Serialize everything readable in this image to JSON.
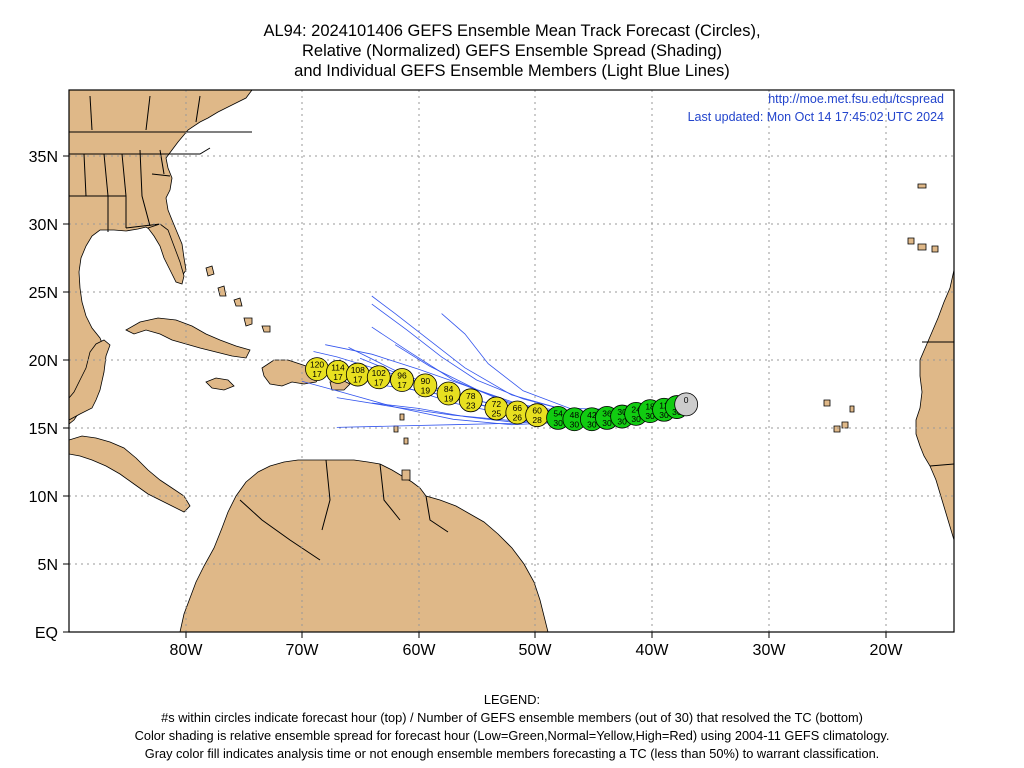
{
  "title": {
    "line1": "AL94: 2024101406 GEFS Ensemble Mean Track Forecast (Circles),",
    "line2": "Relative (Normalized) GEFS Ensemble Spread (Shading)",
    "line3": "and Individual GEFS Ensemble Members (Light Blue Lines)"
  },
  "credit": {
    "url": "http://moe.met.fsu.edu/tcspread",
    "updated": "Last updated: Mon Oct 14 17:45:02 UTC 2024"
  },
  "axes": {
    "lon_ticks": [
      "80W",
      "70W",
      "60W",
      "50W",
      "40W",
      "30W",
      "20W"
    ],
    "lat_ticks": [
      "EQ",
      "5N",
      "10N",
      "15N",
      "20N",
      "25N",
      "30N",
      "35N"
    ],
    "lon_range": [
      -90,
      -14
    ],
    "lat_range": [
      0,
      40
    ]
  },
  "colors": {
    "land": "#dfb888",
    "green": "#11cc11",
    "yellow": "#e8e020",
    "gray": "#cccccc",
    "member_lines": "#3355ee",
    "credit_text": "#2244cc"
  },
  "chart_data": {
    "type": "scatter",
    "track": [
      {
        "hour": "0",
        "members": "",
        "lon": -37.0,
        "lat": 16.8,
        "fill": "gray"
      },
      {
        "hour": "6",
        "members": "30",
        "lon": -37.8,
        "lat": 16.6,
        "fill": "green"
      },
      {
        "hour": "12",
        "members": "30",
        "lon": -38.9,
        "lat": 16.4,
        "fill": "green"
      },
      {
        "hour": "18",
        "members": "30",
        "lon": -40.1,
        "lat": 16.3,
        "fill": "green"
      },
      {
        "hour": "24",
        "members": "30",
        "lon": -41.3,
        "lat": 16.1,
        "fill": "green"
      },
      {
        "hour": "30",
        "members": "30",
        "lon": -42.5,
        "lat": 15.9,
        "fill": "green"
      },
      {
        "hour": "36",
        "members": "30",
        "lon": -43.8,
        "lat": 15.8,
        "fill": "green"
      },
      {
        "hour": "42",
        "members": "30",
        "lon": -45.1,
        "lat": 15.7,
        "fill": "green"
      },
      {
        "hour": "48",
        "members": "30",
        "lon": -46.6,
        "lat": 15.7,
        "fill": "green"
      },
      {
        "hour": "54",
        "members": "30",
        "lon": -48.0,
        "lat": 15.8,
        "fill": "green"
      },
      {
        "hour": "60",
        "members": "28",
        "lon": -49.8,
        "lat": 16.0,
        "fill": "yellow"
      },
      {
        "hour": "66",
        "members": "26",
        "lon": -51.5,
        "lat": 16.2,
        "fill": "yellow"
      },
      {
        "hour": "72",
        "members": "25",
        "lon": -53.3,
        "lat": 16.5,
        "fill": "yellow"
      },
      {
        "hour": "78",
        "members": "23",
        "lon": -55.5,
        "lat": 17.1,
        "fill": "yellow"
      },
      {
        "hour": "84",
        "members": "19",
        "lon": -57.4,
        "lat": 17.6,
        "fill": "yellow"
      },
      {
        "hour": "90",
        "members": "19",
        "lon": -59.4,
        "lat": 18.2,
        "fill": "yellow"
      },
      {
        "hour": "96",
        "members": "17",
        "lon": -61.4,
        "lat": 18.6,
        "fill": "yellow"
      },
      {
        "hour": "102",
        "members": "17",
        "lon": -63.4,
        "lat": 18.8,
        "fill": "yellow"
      },
      {
        "hour": "108",
        "members": "17",
        "lon": -65.2,
        "lat": 19.0,
        "fill": "yellow"
      },
      {
        "hour": "114",
        "members": "17",
        "lon": -66.9,
        "lat": 19.2,
        "fill": "yellow"
      },
      {
        "hour": "120",
        "members": "17",
        "lon": -68.7,
        "lat": 19.4,
        "fill": "yellow"
      }
    ],
    "members": [
      [
        [
          -37.5,
          16.6
        ],
        [
          -42,
          16.2
        ],
        [
          -47,
          16.0
        ],
        [
          -52,
          16.5
        ],
        [
          -57,
          17.5
        ],
        [
          -62,
          19.3
        ],
        [
          -66,
          21.0
        ]
      ],
      [
        [
          -37.5,
          16.6
        ],
        [
          -42,
          16.3
        ],
        [
          -47,
          16.3
        ],
        [
          -52,
          17.5
        ],
        [
          -56,
          19.5
        ],
        [
          -59,
          21.5
        ],
        [
          -62,
          23.5
        ],
        [
          -64,
          24.8
        ]
      ],
      [
        [
          -37.5,
          16.6
        ],
        [
          -42,
          16.1
        ],
        [
          -47,
          15.8
        ],
        [
          -52,
          16.0
        ],
        [
          -57,
          16.9
        ],
        [
          -62,
          18.3
        ],
        [
          -67,
          19.8
        ]
      ],
      [
        [
          -37.5,
          16.6
        ],
        [
          -42,
          16.0
        ],
        [
          -47,
          15.6
        ],
        [
          -52,
          15.6
        ],
        [
          -57,
          16.0
        ],
        [
          -62,
          16.6
        ],
        [
          -67,
          17.3
        ]
      ],
      [
        [
          -37.5,
          16.6
        ],
        [
          -42,
          16.2
        ],
        [
          -47,
          15.9
        ],
        [
          -52,
          16.2
        ],
        [
          -57,
          17.3
        ],
        [
          -61,
          18.8
        ],
        [
          -65,
          20.2
        ]
      ],
      [
        [
          -37.5,
          16.6
        ],
        [
          -42,
          16.4
        ],
        [
          -47,
          16.5
        ],
        [
          -51,
          17.8
        ],
        [
          -54,
          19.8
        ],
        [
          -56,
          22.0
        ],
        [
          -58,
          23.5
        ]
      ],
      [
        [
          -37.5,
          16.6
        ],
        [
          -42,
          16.1
        ],
        [
          -47,
          15.7
        ],
        [
          -52,
          15.4
        ],
        [
          -57,
          15.3
        ],
        [
          -62,
          15.2
        ],
        [
          -67,
          15.1
        ]
      ],
      [
        [
          -37.5,
          16.6
        ],
        [
          -42,
          16.2
        ],
        [
          -47,
          16.1
        ],
        [
          -52,
          16.8
        ],
        [
          -57,
          18.6
        ],
        [
          -61,
          20.8
        ],
        [
          -64,
          22.5
        ]
      ],
      [
        [
          -37.5,
          16.6
        ],
        [
          -42,
          16.0
        ],
        [
          -47,
          15.5
        ],
        [
          -52,
          15.3
        ],
        [
          -57,
          15.7
        ],
        [
          -62,
          16.6
        ],
        [
          -67,
          17.8
        ],
        [
          -70,
          18.5
        ]
      ],
      [
        [
          -37.5,
          16.6
        ],
        [
          -42,
          16.3
        ],
        [
          -47,
          16.2
        ],
        [
          -52,
          16.9
        ],
        [
          -56,
          18.2
        ],
        [
          -60,
          19.4
        ],
        [
          -64,
          20.5
        ],
        [
          -68,
          21.2
        ]
      ],
      [
        [
          -37.5,
          16.6
        ],
        [
          -42,
          16.1
        ],
        [
          -47,
          15.6
        ],
        [
          -52,
          15.5
        ],
        [
          -56,
          15.9
        ],
        [
          -60,
          16.5
        ],
        [
          -64,
          16.9
        ]
      ],
      [
        [
          -37.5,
          16.6
        ],
        [
          -42,
          16.2
        ],
        [
          -47,
          16.3
        ],
        [
          -51,
          17.2
        ],
        [
          -55,
          18.6
        ],
        [
          -58,
          20.3
        ],
        [
          -61,
          22.3
        ],
        [
          -64,
          24.2
        ]
      ],
      [
        [
          -37.5,
          16.6
        ],
        [
          -42,
          16.1
        ],
        [
          -47,
          15.9
        ],
        [
          -52,
          16.4
        ],
        [
          -57,
          17.6
        ],
        [
          -62,
          19.0
        ],
        [
          -67,
          20.3
        ],
        [
          -69,
          20.7
        ]
      ],
      [
        [
          -37.5,
          16.6
        ],
        [
          -42,
          16.2
        ],
        [
          -47,
          16.0
        ],
        [
          -51,
          16.7
        ],
        [
          -55,
          17.9
        ],
        [
          -59,
          19.6
        ],
        [
          -62,
          21.2
        ]
      ],
      [
        [
          -37.5,
          16.6
        ],
        [
          -42,
          16.0
        ],
        [
          -47,
          15.8
        ],
        [
          -51,
          16.1
        ],
        [
          -55,
          16.8
        ],
        [
          -59,
          17.7
        ],
        [
          -63,
          18.2
        ]
      ]
    ]
  },
  "legend": {
    "heading": "LEGEND:",
    "line1": "#s within circles indicate forecast hour (top) / Number of GEFS ensemble members (out of 30) that resolved the TC (bottom)",
    "line2": "Color shading is relative ensemble spread for forecast hour (Low=Green,Normal=Yellow,High=Red) using 2004-11 GEFS climatology.",
    "line3": "Gray color fill indicates analysis time or not enough ensemble members forecasting a TC (less than 50%) to warrant classification."
  }
}
